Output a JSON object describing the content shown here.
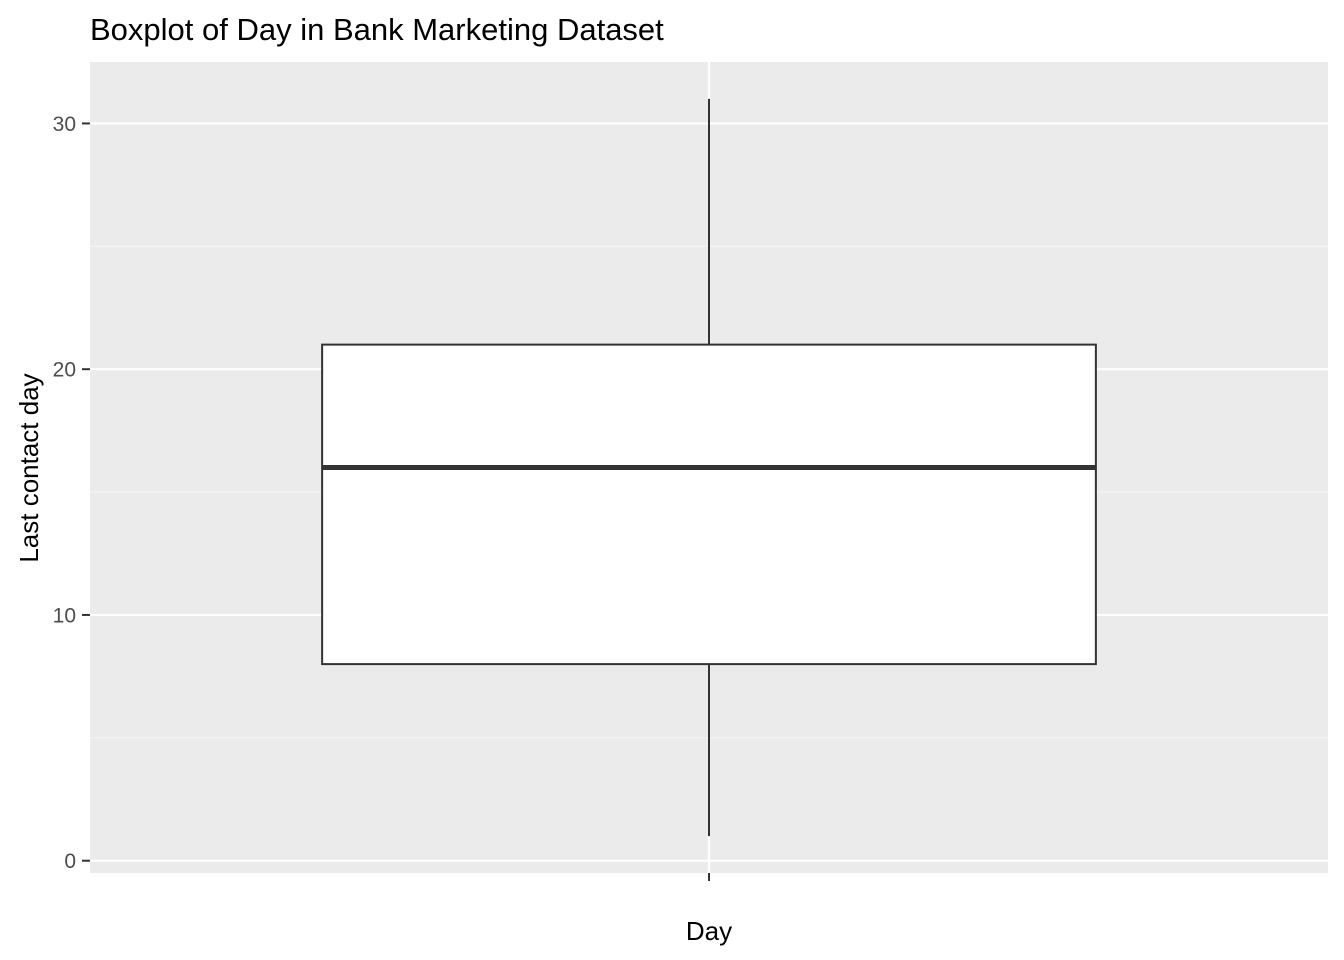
{
  "chart_data": {
    "type": "boxplot",
    "title": "Boxplot of Day in Bank Marketing Dataset",
    "xlabel": "Day",
    "ylabel": "Last contact day",
    "categories": [
      ""
    ],
    "boxes": [
      {
        "category": "",
        "min": 1,
        "q1": 8,
        "median": 16,
        "q3": 21,
        "max": 31
      }
    ],
    "ylim": [
      -0.5,
      32.5
    ],
    "yticks": [
      0,
      10,
      20,
      30
    ],
    "ytick_labels": [
      "0",
      "10",
      "20",
      "30"
    ],
    "grid": true,
    "legend": "none",
    "colors": {
      "panel_background": "#ebebeb",
      "grid_major": "#ffffff",
      "grid_minor": "#f5f5f5",
      "box_fill": "#ffffff",
      "box_stroke": "#333333",
      "tick_mark": "#333333",
      "tick_label": "#4d4d4d"
    }
  }
}
